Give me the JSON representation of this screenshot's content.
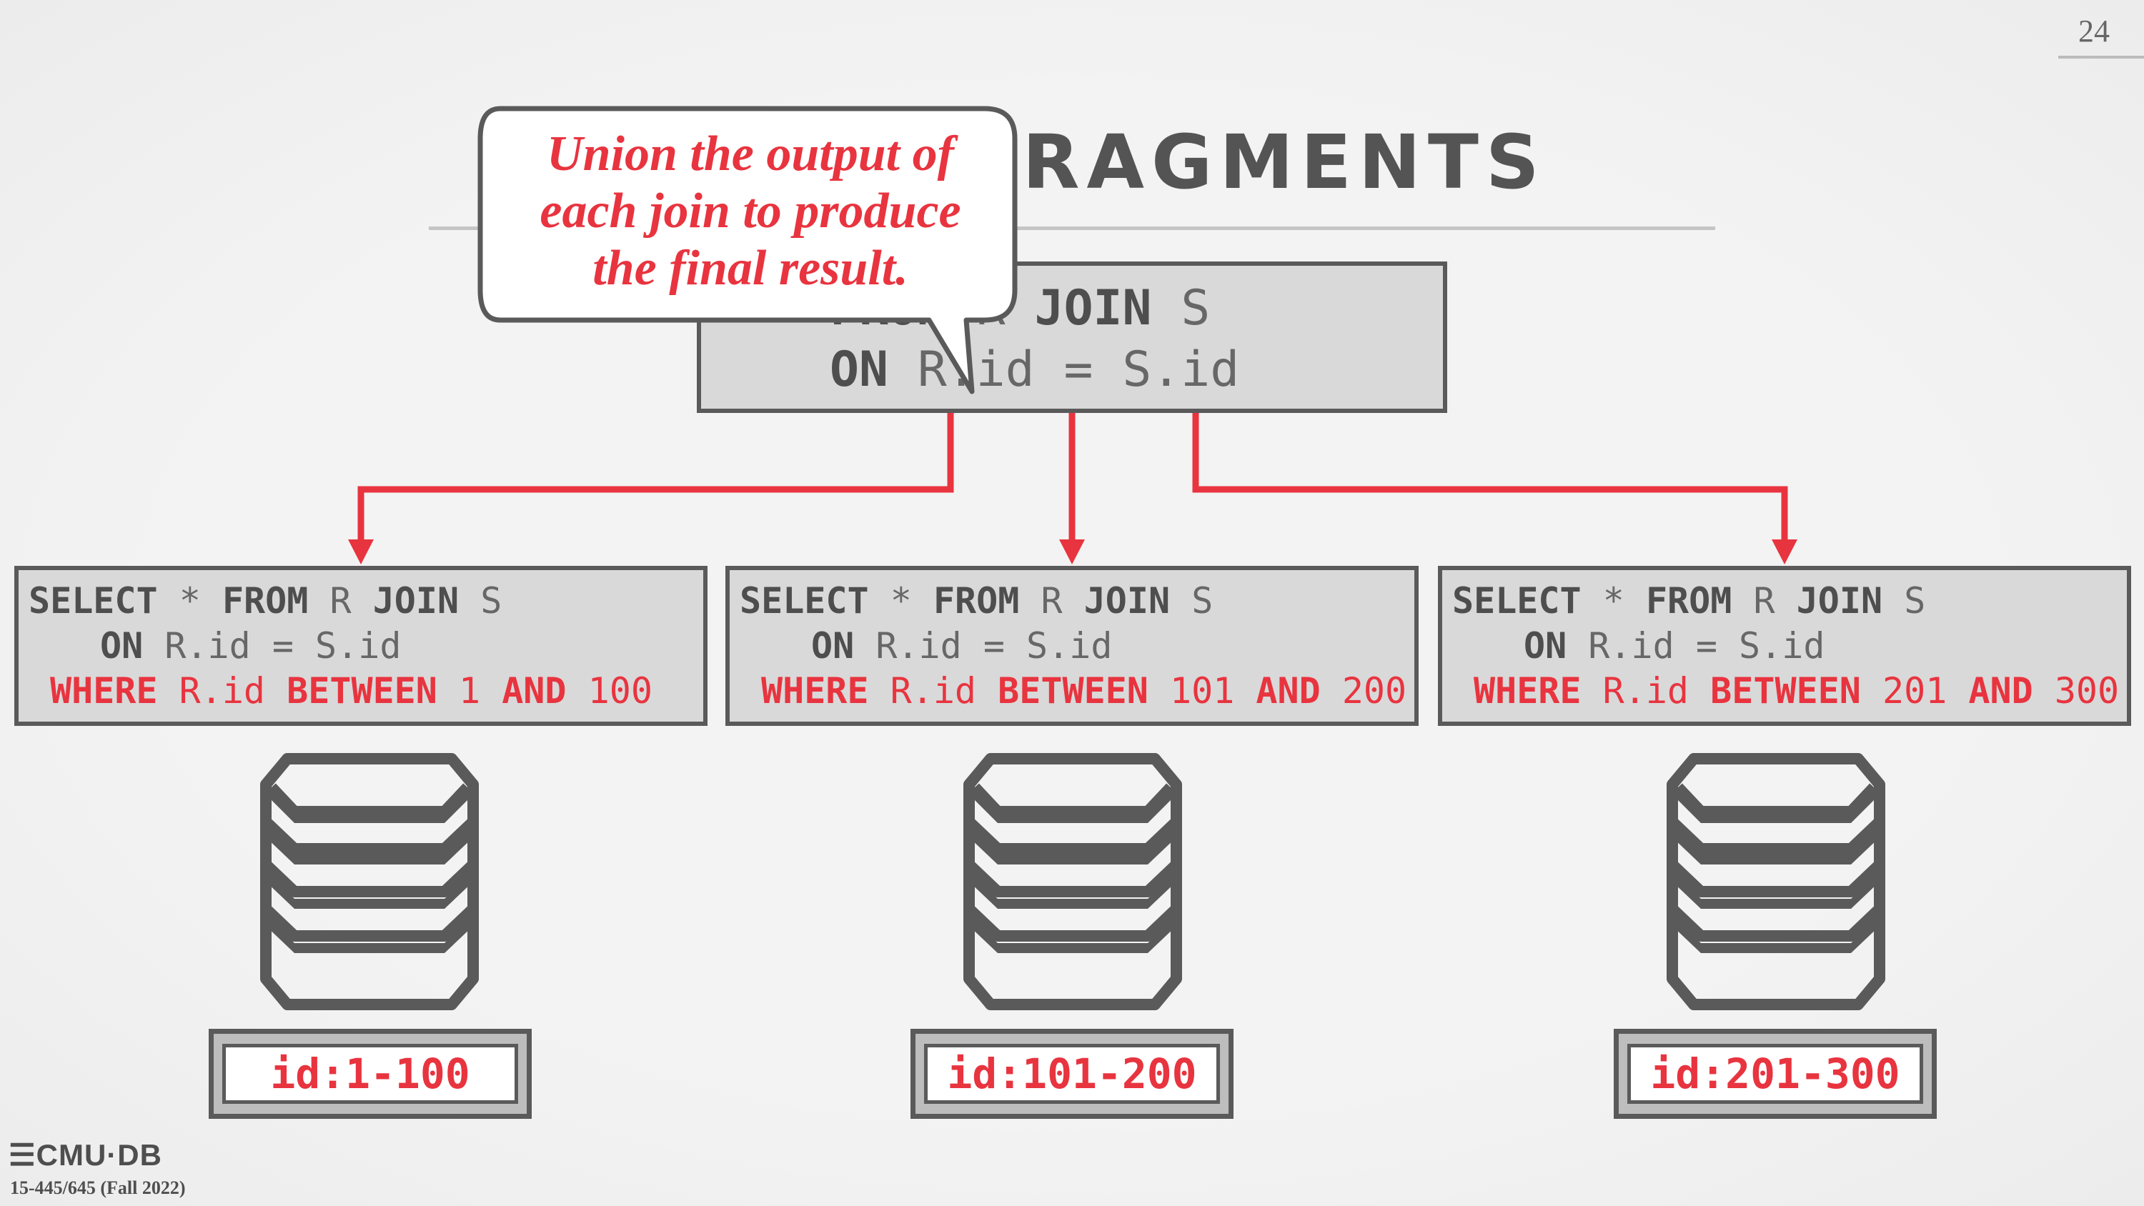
{
  "slide": {
    "page_number": "24",
    "title_visible": "N FRAGMENTS"
  },
  "callout": {
    "line1": "Union the output of",
    "line2": "each join to produce",
    "line3": "the final result."
  },
  "top_query": {
    "line1_kw1": "FROM",
    "line1_r": "R",
    "line1_kw2": "JOIN",
    "line1_s": "S",
    "line2_kw": "ON",
    "line2_expr": "R.id = S.id"
  },
  "fragments": [
    {
      "select": "SELECT",
      "star": "*",
      "from": "FROM",
      "r": "R",
      "join": "JOIN",
      "s": "S",
      "on": "ON",
      "cond": "R.id = S.id",
      "where": "WHERE",
      "col": "R.id",
      "between": "BETWEEN",
      "lo": "1",
      "and": "AND",
      "hi": "100",
      "range_label": "id:1-100"
    },
    {
      "select": "SELECT",
      "star": "*",
      "from": "FROM",
      "r": "R",
      "join": "JOIN",
      "s": "S",
      "on": "ON",
      "cond": "R.id = S.id",
      "where": "WHERE",
      "col": "R.id",
      "between": "BETWEEN",
      "lo": "101",
      "and": "AND",
      "hi": "200",
      "range_label": "id:101-200"
    },
    {
      "select": "SELECT",
      "star": "*",
      "from": "FROM",
      "r": "R",
      "join": "JOIN",
      "s": "S",
      "on": "ON",
      "cond": "R.id = S.id",
      "where": "WHERE",
      "col": "R.id",
      "between": "BETWEEN",
      "lo": "201",
      "and": "AND",
      "hi": "300",
      "range_label": "id:201-300"
    }
  ],
  "footer": {
    "logo": "CMU·DB",
    "course": "15-445/645 (Fall 2022)"
  },
  "colors": {
    "accent": "#e8343f",
    "box_fill": "#d9d9d9",
    "border": "#5a5a5a"
  }
}
